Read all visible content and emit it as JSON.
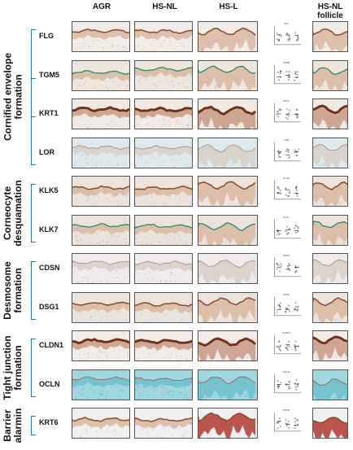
{
  "columns": [
    "AGR",
    "HS-NL",
    "HS-L",
    "HS-NL\nfollicle"
  ],
  "groups": [
    {
      "label": "Cornified envelope\nformation",
      "markers": [
        "FLG",
        "TGM5",
        "KRT1",
        "LOR"
      ]
    },
    {
      "label": "Corneocyte\ndesquamation",
      "markers": [
        "KLK5",
        "KLK7"
      ]
    },
    {
      "label": "Desmosome\nformation",
      "markers": [
        "CDSN",
        "DSG1"
      ]
    },
    {
      "label": "Tight junction\nformation",
      "markers": [
        "CLDN1",
        "OCLN"
      ]
    },
    {
      "label": "Barrier\nalarmin",
      "markers": [
        "KRT6"
      ]
    }
  ],
  "rows": [
    {
      "marker": "FLG",
      "mini_title": "FLG",
      "stain": "brown-top",
      "bg": "#f3ece6"
    },
    {
      "marker": "TGM5",
      "mini_title": "TGM5",
      "stain": "mixed",
      "bg": "#eee6dc"
    },
    {
      "marker": "KRT1",
      "mini_title": "KRT1",
      "stain": "dark-band",
      "bg": "#f1e9e4"
    },
    {
      "marker": "LOR",
      "mini_title": "LOR",
      "stain": "light",
      "bg": "#dde9ec"
    },
    {
      "marker": "KLK5",
      "mini_title": "KLK5",
      "stain": "brown-top",
      "bg": "#ede3dc"
    },
    {
      "marker": "KLK7",
      "mini_title": "KLK7",
      "stain": "mixed",
      "bg": "#ebe2dc"
    },
    {
      "marker": "CDSN",
      "mini_title": "CDSN",
      "stain": "light",
      "bg": "#f1eaea"
    },
    {
      "marker": "DSG1",
      "mini_title": "DSG1",
      "stain": "brown-top",
      "bg": "#ece4dc"
    },
    {
      "marker": "CLDN1",
      "mini_title": "CLDN1",
      "stain": "dark-band",
      "bg": "#f2ebe7"
    },
    {
      "marker": "OCLN",
      "mini_title": "OCLN",
      "stain": "blue",
      "bg": "#9fd6df"
    },
    {
      "marker": "KRT6",
      "mini_title": "KRT6",
      "stain": "red-lesion",
      "bg": "#eef0f1"
    }
  ],
  "mini_groups": [
    "AGR",
    "HS-NL",
    "HS-L"
  ],
  "colors": {
    "bracket": "#2b6fb5",
    "stain_brown": "#8a4b2e",
    "stain_red": "#c0392b",
    "counter_blue": "#7fc4cf"
  }
}
